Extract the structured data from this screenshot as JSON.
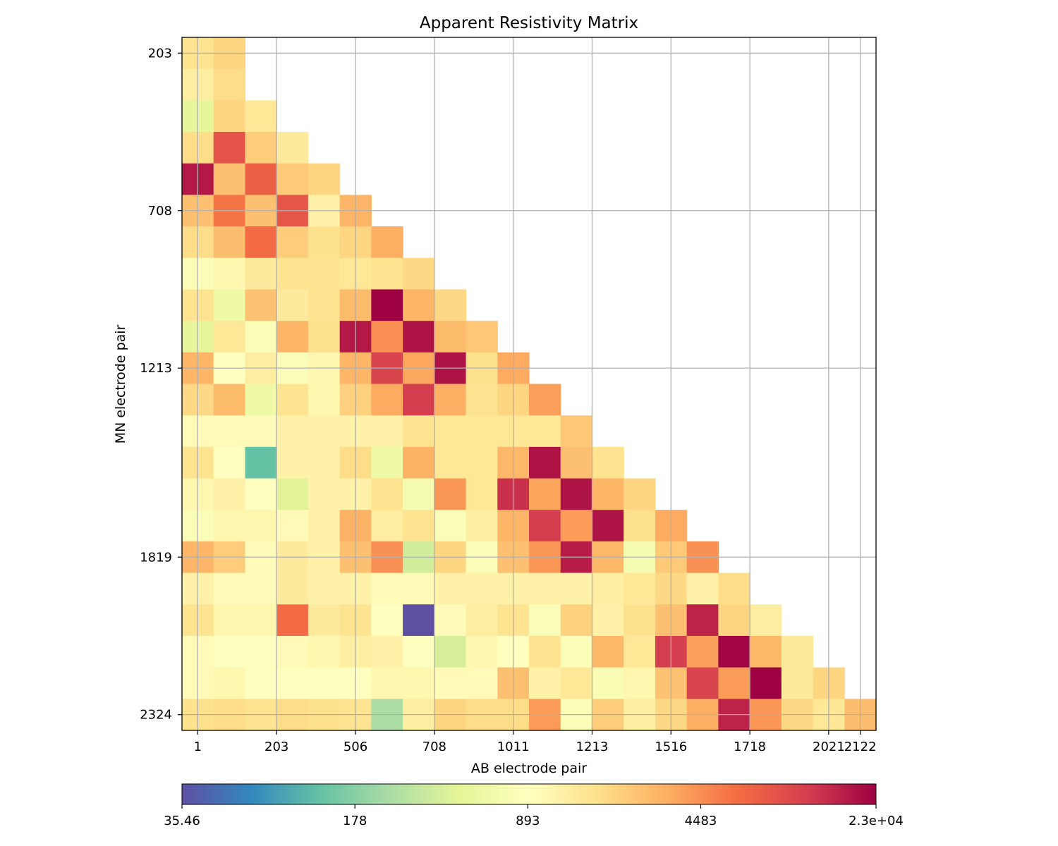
{
  "chart_data": {
    "type": "heatmap",
    "title": "Apparent Resistivity Matrix",
    "xlabel": "AB electrode pair",
    "ylabel": "MN electrode pair",
    "x_ticks": [
      "1",
      "203",
      "506",
      "708",
      "1011",
      "1213",
      "1516",
      "1718",
      "2021",
      "2122"
    ],
    "y_ticks": [
      "203",
      "708",
      "1213",
      "1819",
      "2324"
    ],
    "colorbar": {
      "scale": "log",
      "min": 35.46,
      "max": 23000,
      "colormap": "Spectral_r",
      "tick_labels": [
        "35.46",
        "178",
        "893",
        "4483",
        "2.3e+04"
      ]
    },
    "grid": true,
    "n_rows": 22,
    "n_cols": 22,
    "cells": [
      [
        1600,
        2000
      ],
      [
        1300,
        1800
      ],
      [
        500,
        2000,
        1500
      ],
      [
        1800,
        9000,
        2200,
        1400
      ],
      [
        18000,
        2600,
        7500,
        2300,
        2000
      ],
      [
        2600,
        5800,
        2600,
        8500,
        1200,
        3000
      ],
      [
        1800,
        2700,
        6500,
        2200,
        1700,
        2000,
        3200
      ],
      [
        800,
        1100,
        1400,
        1600,
        1600,
        1500,
        1600,
        1900
      ],
      [
        1600,
        600,
        2500,
        1400,
        1600,
        2800,
        23000,
        3000,
        1900
      ],
      [
        500,
        1500,
        800,
        3000,
        1700,
        18000,
        4500,
        19000,
        2800,
        2400
      ],
      [
        3000,
        900,
        1300,
        800,
        1100,
        3000,
        11000,
        3500,
        19000,
        1700,
        3400
      ],
      [
        1900,
        2800,
        600,
        1600,
        1100,
        2100,
        3400,
        12000,
        3200,
        1600,
        2000,
        3800
      ],
      [
        1000,
        1000,
        1000,
        1200,
        1200,
        1200,
        1200,
        1600,
        1500,
        1500,
        1500,
        1500,
        2400
      ],
      [
        1600,
        900,
        130,
        1200,
        1200,
        1800,
        600,
        3100,
        1500,
        1500,
        2900,
        19000,
        2600,
        1600
      ],
      [
        1100,
        1200,
        900,
        450,
        1200,
        1200,
        1600,
        700,
        4200,
        1500,
        14000,
        3600,
        19000,
        3000,
        2000
      ],
      [
        800,
        1100,
        1100,
        1000,
        1200,
        3100,
        1300,
        1600,
        800,
        1300,
        3000,
        12000,
        3900,
        19000,
        1700,
        3400
      ],
      [
        3000,
        2200,
        1000,
        1400,
        1200,
        2600,
        4400,
        380,
        2000,
        800,
        2600,
        4200,
        17000,
        2900,
        700,
        2300,
        4400
      ],
      [
        1200,
        1000,
        1000,
        1400,
        1200,
        1200,
        1000,
        1000,
        1200,
        1200,
        1200,
        1200,
        1200,
        1300,
        1500,
        1900,
        1200,
        1800
      ],
      [
        1600,
        1100,
        1100,
        6500,
        1400,
        1600,
        900,
        35.46,
        1000,
        1300,
        1600,
        800,
        2100,
        1200,
        1700,
        2600,
        16000,
        2000,
        1300
      ],
      [
        1000,
        900,
        900,
        1000,
        1100,
        1300,
        1200,
        900,
        400,
        1100,
        900,
        1600,
        800,
        2900,
        1500,
        12000,
        3800,
        22000,
        2900,
        1400
      ],
      [
        1000,
        1100,
        900,
        900,
        900,
        900,
        1100,
        1100,
        1000,
        1000,
        2600,
        1200,
        1500,
        750,
        1100,
        2500,
        11000,
        3900,
        23000,
        1400,
        2000
      ],
      [
        1700,
        1800,
        1600,
        1800,
        1700,
        1600,
        250,
        1300,
        2000,
        1800,
        1800,
        4000,
        800,
        2200,
        1300,
        1900,
        3200,
        16000,
        4200,
        1900,
        1500,
        2700
      ]
    ]
  }
}
